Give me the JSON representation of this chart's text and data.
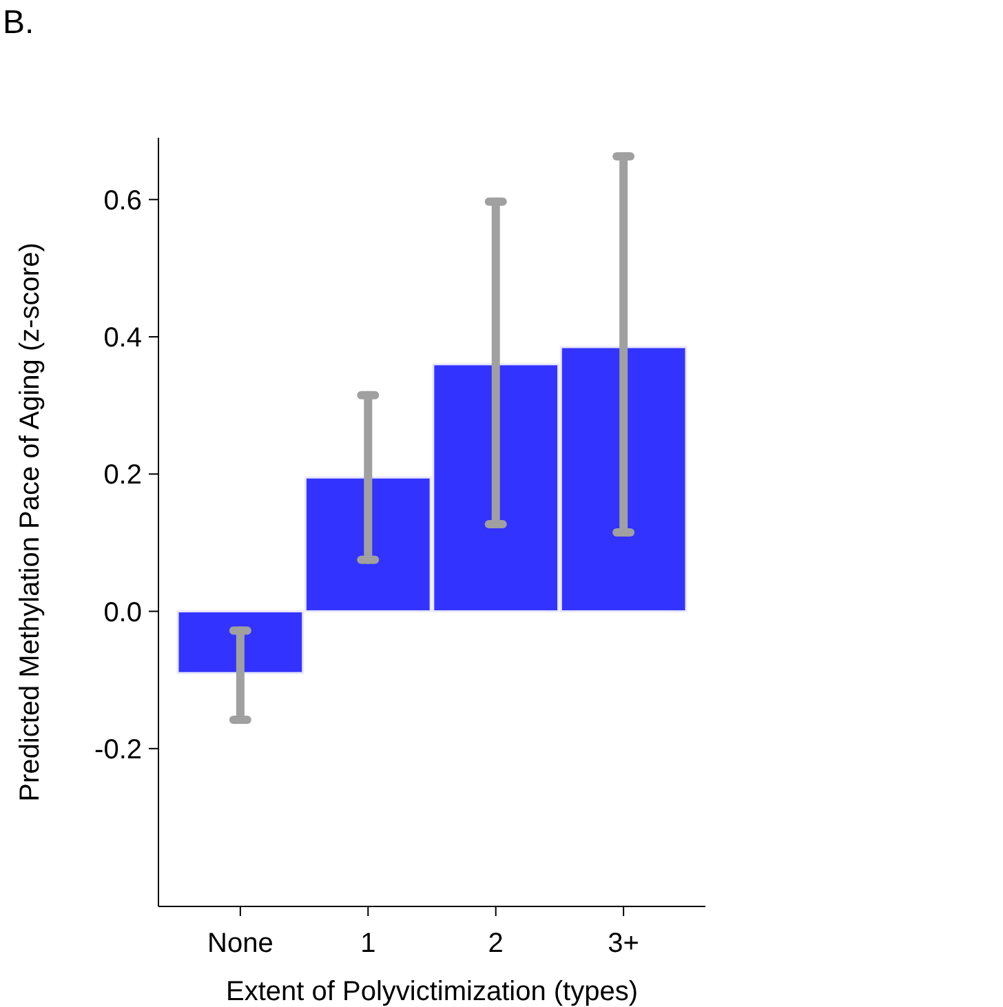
{
  "chart_data": {
    "type": "bar",
    "xlabel": "Extent of Polyvictimization (types)",
    "ylabel": "Predicted Methylation Pace of Aging (z-score)",
    "annotations": [
      "B."
    ],
    "categories": [
      "None",
      "1",
      "2",
      "3+"
    ],
    "values": [
      -0.09,
      0.195,
      0.36,
      0.385
    ],
    "errors": [
      [
        -0.158,
        -0.028
      ],
      [
        0.075,
        0.315
      ],
      [
        0.127,
        0.597
      ],
      [
        0.115,
        0.663
      ]
    ],
    "color": "#3333ff",
    "ylim": [
      -0.43,
      0.69
    ],
    "yticks": [
      {
        "value": -0.2,
        "label": "-0.2"
      },
      {
        "value": 0,
        "label": "0.0"
      },
      {
        "value": 0.2,
        "label": "0.2"
      },
      {
        "value": 0.4,
        "label": "0.4"
      },
      {
        "value": 0.6,
        "label": "0.6"
      }
    ],
    "grid": false
  }
}
